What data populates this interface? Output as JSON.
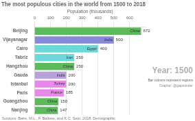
{
  "chart_data": {
    "type": "bar",
    "orientation": "horizontal",
    "title": "The most populous cities in the world from 1500 to 2018",
    "xlabel": "Population (thousands)",
    "subtitle": "Bar colours represent regions",
    "annotations": [
      "Year: 1500",
      "Graphic: @gapminder",
      "Sources: Baire, M.L., F. Batisse, and K.C. Seto. 2018. Demographic"
    ],
    "categories": [
      "Beijing",
      "Vijayanagar",
      "Cairo",
      "Tabriz",
      "Hangzhou",
      "Gauda",
      "Istanbul",
      "Paris",
      "Guangzhou",
      "Nanjing"
    ],
    "countries": [
      "China",
      "India",
      "Egypt",
      "Iran",
      "China",
      "India",
      "Turkey",
      "France",
      "China",
      "China"
    ],
    "values": [
      672,
      500,
      400,
      250,
      250,
      200,
      200,
      185,
      150,
      147
    ],
    "colors": [
      "#5cba5c",
      "#8888d8",
      "#6dd8d8",
      "#6dd8d8",
      "#5cba5c",
      "#b8a0d8",
      "#e888e8",
      "#e888e8",
      "#5cba5c",
      "#5cba5c"
    ],
    "xlim": [
      0,
      700
    ],
    "xticks": [
      0,
      100,
      200,
      300,
      400,
      500,
      600
    ],
    "grid": true,
    "data_labels": true
  }
}
